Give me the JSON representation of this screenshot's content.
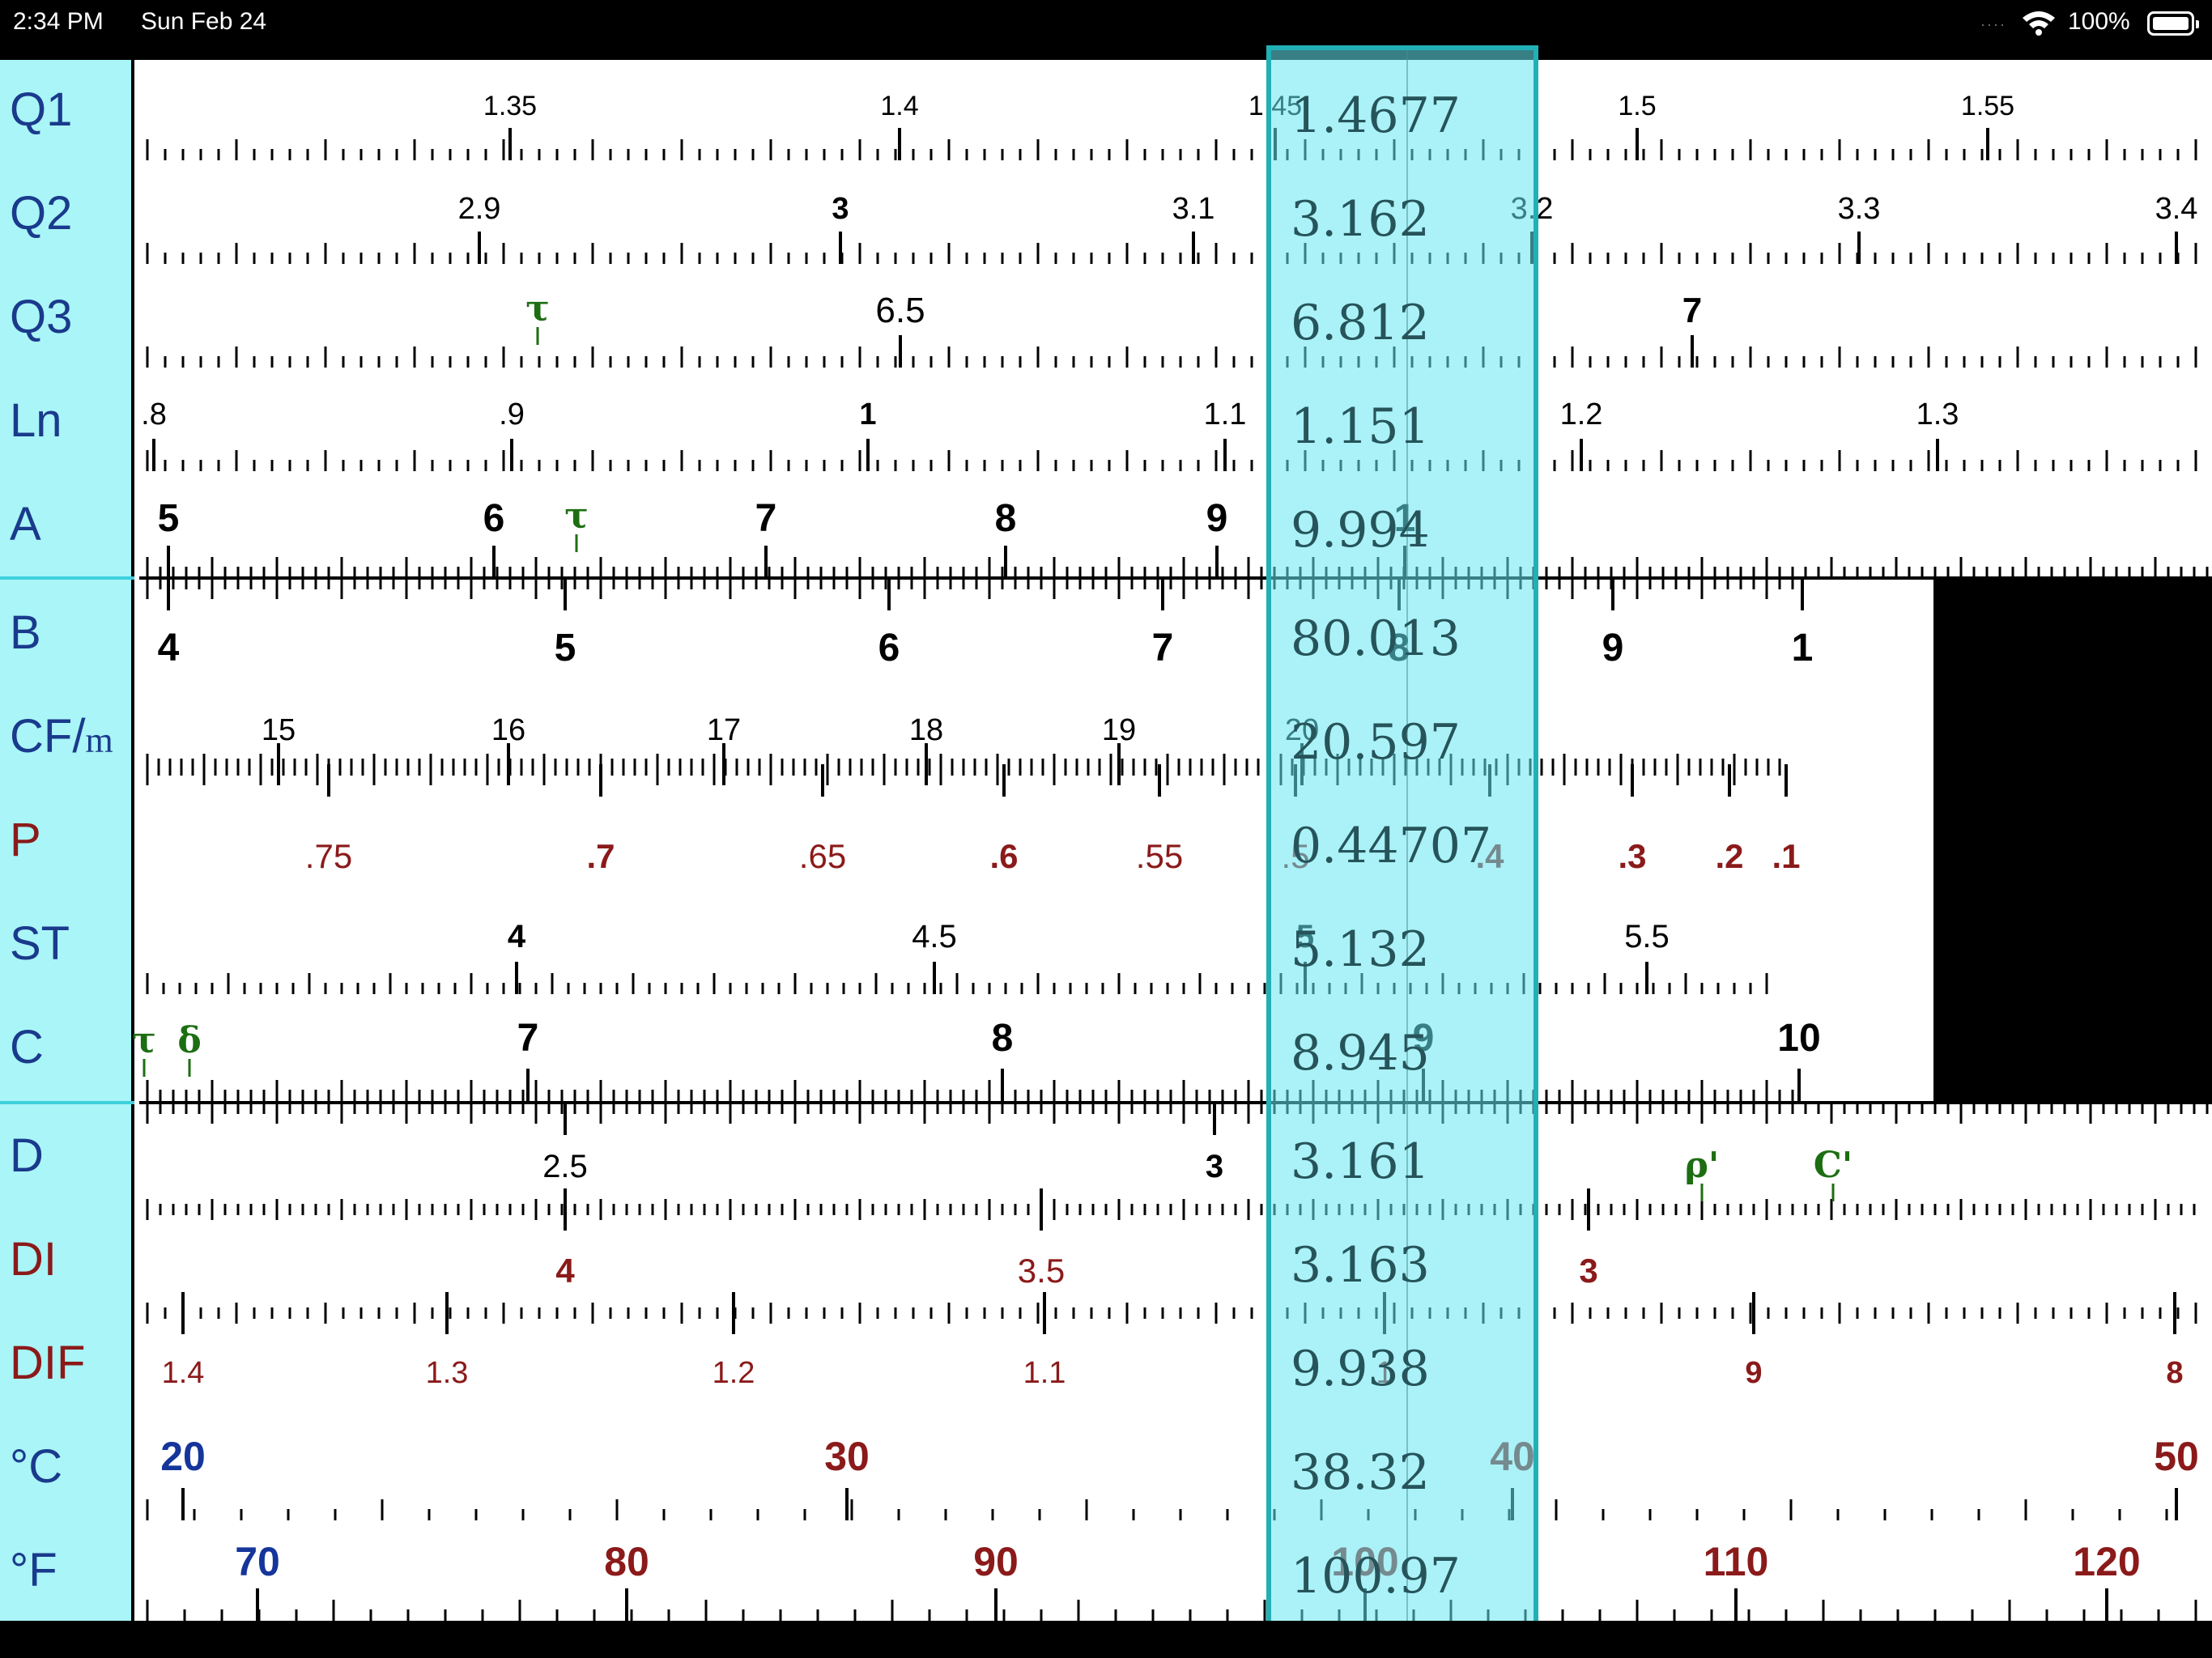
{
  "status_bar": {
    "time": "2:34 PM",
    "date": "Sun Feb 24",
    "battery": "100%",
    "icons": [
      "wifi-icon",
      "battery-icon"
    ]
  },
  "scale_labels": {
    "Q1": "Q1",
    "Q2": "Q2",
    "Q3": "Q3",
    "Ln": "Ln",
    "A": "A",
    "B": "B",
    "CF": "CF/",
    "CF_sub": "m",
    "P": "P",
    "ST": "ST",
    "C": "C",
    "D": "D",
    "DI": "DI",
    "DIF": "DIF",
    "degC": "°C",
    "degF": "°F"
  },
  "scales": {
    "Q1": [
      [
        "1.35",
        630
      ],
      [
        "1.4",
        1111
      ],
      [
        "1.45",
        1575
      ],
      [
        "1.5",
        2022
      ],
      [
        "1.55",
        2455
      ]
    ],
    "Q2": [
      [
        "2.9",
        592
      ],
      [
        "3",
        1038
      ],
      [
        "3.1",
        1474
      ],
      [
        "3.2",
        1892
      ],
      [
        "3.3",
        2296
      ],
      [
        "3.4",
        2688
      ]
    ],
    "Q3": [
      [
        "6.5",
        1112
      ],
      [
        "7",
        2090
      ]
    ],
    "Ln": [
      [
        ".8",
        190
      ],
      [
        ".9",
        632
      ],
      [
        "1",
        1072
      ],
      [
        "1.1",
        1513
      ],
      [
        "1.2",
        1953
      ],
      [
        "1.3",
        2393
      ]
    ],
    "A": [
      [
        "5",
        208
      ],
      [
        "6",
        610
      ],
      [
        "7",
        946
      ],
      [
        "8",
        1242
      ],
      [
        "9",
        1503
      ],
      [
        "1",
        1735
      ]
    ],
    "B": [
      [
        "4",
        208
      ],
      [
        "5",
        698
      ],
      [
        "6",
        1098
      ],
      [
        "7",
        1436
      ],
      [
        "8",
        1728
      ],
      [
        "9",
        1992
      ],
      [
        "1",
        2226
      ]
    ],
    "CF": [
      [
        "15",
        344
      ],
      [
        "16",
        628
      ],
      [
        "17",
        894
      ],
      [
        "18",
        1144
      ],
      [
        "19",
        1382
      ],
      [
        "20",
        1608
      ]
    ],
    "P": [
      [
        ".75",
        406
      ],
      [
        ".7",
        742
      ],
      [
        ".65",
        1016
      ],
      [
        ".6",
        1240
      ],
      [
        ".55",
        1432
      ],
      [
        ".5",
        1600
      ],
      [
        ".4",
        1840
      ],
      [
        ".3",
        2016
      ],
      [
        ".2",
        2136
      ],
      [
        ".1",
        2206
      ]
    ],
    "ST": [
      [
        "4",
        638
      ],
      [
        "4.5",
        1154
      ],
      [
        "5",
        1612
      ],
      [
        "5.5",
        2034
      ]
    ],
    "C": [
      [
        "7",
        652
      ],
      [
        "8",
        1238
      ],
      [
        "9",
        1758
      ],
      [
        "10",
        2222
      ]
    ],
    "D": [
      [
        "2.5",
        698
      ],
      [
        "3",
        1500
      ]
    ],
    "DI": [
      [
        "4",
        698
      ],
      [
        "3.5",
        1286
      ],
      [
        "3",
        1962
      ]
    ],
    "DIF": [
      [
        "1.4",
        226
      ],
      [
        "1.3",
        552
      ],
      [
        "1.2",
        906
      ],
      [
        "1.1",
        1290
      ],
      [
        "1",
        1710
      ],
      [
        "9",
        2166
      ],
      [
        "8",
        2686
      ]
    ],
    "degC": [
      [
        "20",
        226
      ],
      [
        "30",
        1046
      ],
      [
        "40",
        1868
      ],
      [
        "50",
        2688
      ]
    ],
    "degF": [
      [
        "70",
        318
      ],
      [
        "80",
        774
      ],
      [
        "90",
        1230
      ],
      [
        "100",
        1686
      ],
      [
        "110",
        2144
      ],
      [
        "120",
        2602
      ]
    ]
  },
  "gauge_marks": [
    {
      "symbol": "τ",
      "scale": "Q3"
    },
    {
      "symbol": "τ",
      "scale": "A"
    },
    {
      "symbol": "τ",
      "scale": "C"
    },
    {
      "symbol": "δ",
      "scale": "C"
    },
    {
      "symbol": "ρ'",
      "scale": "D"
    },
    {
      "symbol": "C'",
      "scale": "D"
    }
  ],
  "cursor_readouts": {
    "Q1": "1.4677",
    "Q2": "3.162",
    "Q3": "6.812",
    "Ln": "1.151",
    "A": "9.994",
    "B": "80.013",
    "CF": "20.597",
    "P": "0.44707",
    "ST": "5.132",
    "C": "8.945",
    "D": "3.161",
    "DI": "3.163",
    "DIF": "9.938",
    "degC": "38.32",
    "degF": "100.97"
  },
  "colors": {
    "label_panel": "#a9f5f7",
    "cursor": "#64e8f0",
    "cursor_border": "#22b0b6",
    "black": "#000000",
    "red_scale": "#8b1a1a",
    "green_gauge": "#1d6e12",
    "blue_number": "#15359a"
  }
}
